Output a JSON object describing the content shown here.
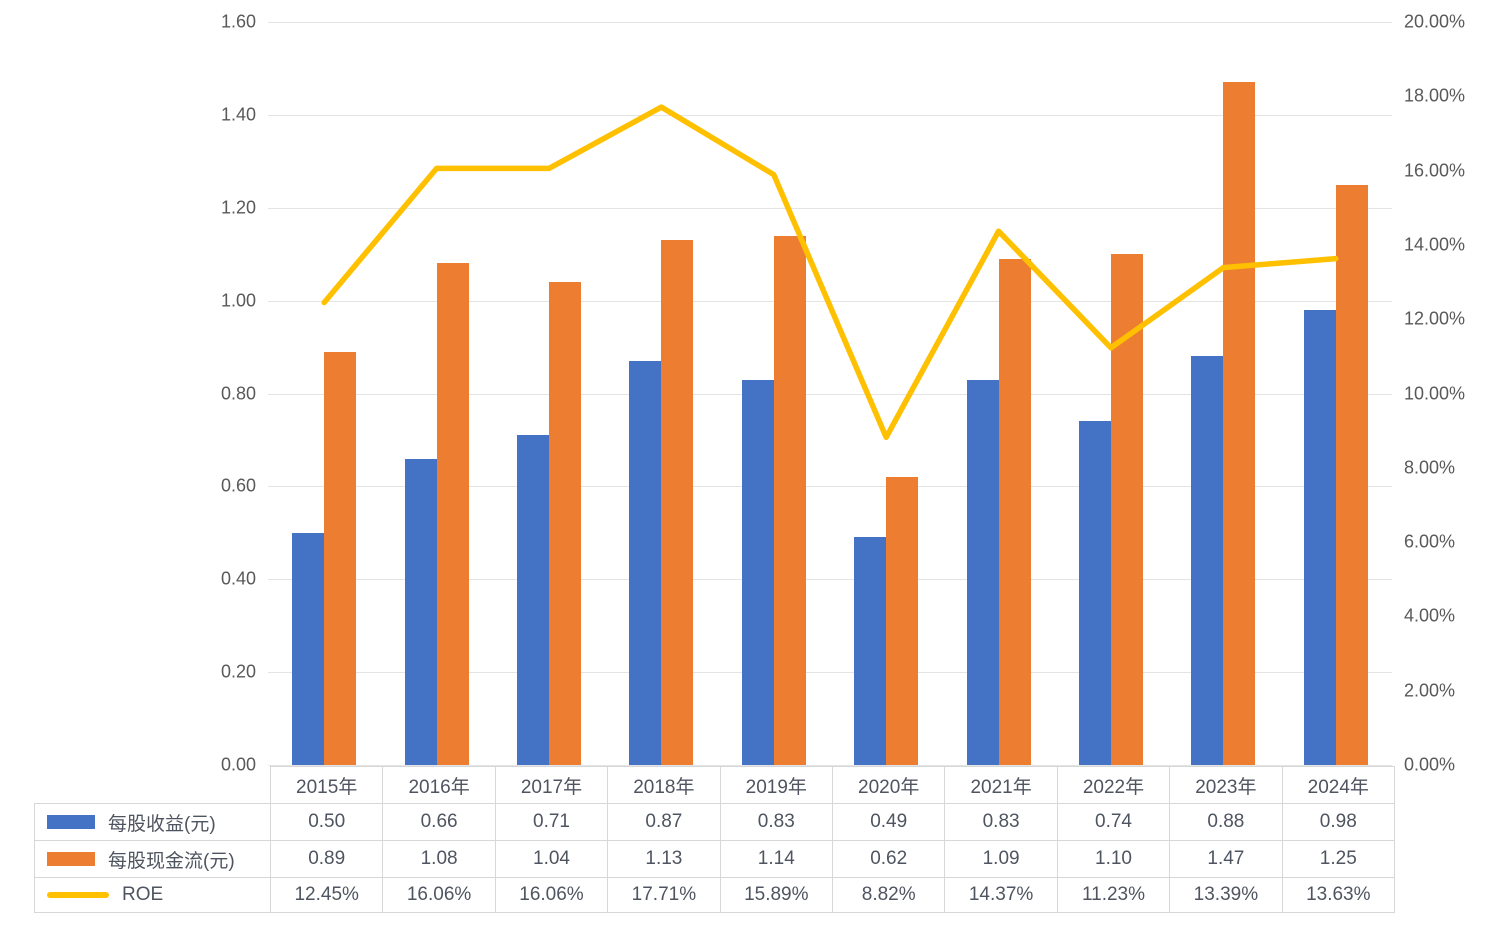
{
  "chart_data": {
    "type": "bar",
    "subtype": "clustered-bar-with-line-dual-axis",
    "title": "",
    "categories": [
      "2015年",
      "2016年",
      "2017年",
      "2018年",
      "2019年",
      "2020年",
      "2021年",
      "2022年",
      "2023年",
      "2024年"
    ],
    "series": [
      {
        "name": "每股收益(元)",
        "type": "bar",
        "axis": "left",
        "color": "#4472C4",
        "values": [
          0.5,
          0.66,
          0.71,
          0.87,
          0.83,
          0.49,
          0.83,
          0.74,
          0.88,
          0.98
        ]
      },
      {
        "name": "每股现金流(元)",
        "type": "bar",
        "axis": "left",
        "color": "#ED7D31",
        "values": [
          0.89,
          1.08,
          1.04,
          1.13,
          1.14,
          0.62,
          1.09,
          1.1,
          1.47,
          1.25
        ]
      },
      {
        "name": "ROE",
        "type": "line",
        "axis": "right",
        "color": "#FFC000",
        "values": [
          12.45,
          16.06,
          16.06,
          17.71,
          15.89,
          8.82,
          14.37,
          11.23,
          13.39,
          13.63
        ]
      }
    ],
    "left_axis": {
      "min": 0,
      "max": 1.6,
      "step": 0.2,
      "ticks": [
        "1.60",
        "1.40",
        "1.20",
        "1.00",
        "0.80",
        "0.60",
        "0.40",
        "0.20",
        "0.00"
      ]
    },
    "right_axis": {
      "min": 0,
      "max": 20,
      "step": 2,
      "ticks": [
        "20.00%",
        "18.00%",
        "16.00%",
        "14.00%",
        "12.00%",
        "10.00%",
        "8.00%",
        "6.00%",
        "4.00%",
        "2.00%",
        "0.00%"
      ]
    },
    "grid": true,
    "legend_position": "data-table-left"
  },
  "table": {
    "year_headers": [
      "2015年",
      "2016年",
      "2017年",
      "2018年",
      "2019年",
      "2020年",
      "2021年",
      "2022年",
      "2023年",
      "2024年"
    ],
    "rows": [
      {
        "label": "每股收益(元)",
        "swatch": "bar",
        "color": "#4472C4",
        "cells": [
          "0.50",
          "0.66",
          "0.71",
          "0.87",
          "0.83",
          "0.49",
          "0.83",
          "0.74",
          "0.88",
          "0.98"
        ]
      },
      {
        "label": "每股现金流(元)",
        "swatch": "bar",
        "color": "#ED7D31",
        "cells": [
          "0.89",
          "1.08",
          "1.04",
          "1.13",
          "1.14",
          "0.62",
          "1.09",
          "1.10",
          "1.47",
          "1.25"
        ]
      },
      {
        "label": "ROE",
        "swatch": "line",
        "color": "#FFC000",
        "cells": [
          "12.45%",
          "16.06%",
          "16.06%",
          "17.71%",
          "15.89%",
          "8.82%",
          "14.37%",
          "11.23%",
          "13.39%",
          "13.63%"
        ]
      }
    ]
  },
  "colors": {
    "eps_bar": "#4472C4",
    "cashflow_bar": "#ED7D31",
    "roe_line": "#FFC000",
    "gridline": "#e4e4e4",
    "axis_text": "#595959",
    "table_border": "#d7d7d7",
    "table_text": "#4f5560"
  }
}
